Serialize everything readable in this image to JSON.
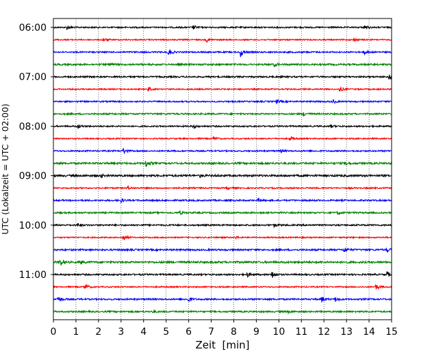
{
  "chart_data": {
    "type": "line",
    "xlabel": "Zeit  [min]",
    "ylabel": "UTC (Lokalzeit = UTC + 02:00)",
    "xlim": [
      0,
      15
    ],
    "x_ticks": [
      0,
      1,
      2,
      3,
      4,
      5,
      6,
      7,
      8,
      9,
      10,
      11,
      12,
      13,
      14,
      15
    ],
    "y_tick_labels": [
      "06:00",
      "07:00",
      "08:00",
      "09:00",
      "10:00",
      "11:00"
    ],
    "grid": "vertical dotted at each minute",
    "trace_minutes": 15,
    "trace_colors": [
      "#000000",
      "#ff0000",
      "#0000ff",
      "#008000"
    ],
    "traces": [
      {
        "start": "06:00",
        "color": "#000000",
        "amplitude": 1.0,
        "events": [
          {
            "t": 0.6,
            "a": 3
          },
          {
            "t": 6.2,
            "a": 3
          },
          {
            "t": 13.8,
            "a": 3.5
          }
        ]
      },
      {
        "start": "06:15",
        "color": "#ff0000",
        "amplitude": 0.9,
        "events": [
          {
            "t": 2.2,
            "a": 3
          },
          {
            "t": 6.8,
            "a": 3
          },
          {
            "t": 13.3,
            "a": 2.5
          }
        ]
      },
      {
        "start": "06:30",
        "color": "#0000ff",
        "amplitude": 1.0,
        "events": [
          {
            "t": 5.1,
            "a": 6
          },
          {
            "t": 8.3,
            "a": 7
          },
          {
            "t": 13.8,
            "a": 2.5
          }
        ]
      },
      {
        "start": "06:45",
        "color": "#008000",
        "amplitude": 1.2,
        "events": [
          {
            "t": 2.5,
            "a": 2
          },
          {
            "t": 9.8,
            "a": 2.5
          }
        ]
      },
      {
        "start": "07:00",
        "color": "#000000",
        "amplitude": 1.1,
        "events": [
          {
            "t": 14.9,
            "a": 5
          }
        ]
      },
      {
        "start": "07:15",
        "color": "#ff0000",
        "amplitude": 0.9,
        "events": [
          {
            "t": 4.2,
            "a": 3
          },
          {
            "t": 12.7,
            "a": 4
          }
        ]
      },
      {
        "start": "07:30",
        "color": "#0000ff",
        "amplitude": 1.0,
        "events": [
          {
            "t": 9.9,
            "a": 2.5
          },
          {
            "t": 12.4,
            "a": 3
          }
        ]
      },
      {
        "start": "07:45",
        "color": "#008000",
        "amplitude": 1.1,
        "events": [
          {
            "t": 11.1,
            "a": 3
          }
        ]
      },
      {
        "start": "08:00",
        "color": "#000000",
        "amplitude": 1.0,
        "events": [
          {
            "t": 1.1,
            "a": 3
          },
          {
            "t": 6.2,
            "a": 3
          },
          {
            "t": 12.3,
            "a": 2
          }
        ]
      },
      {
        "start": "08:15",
        "color": "#ff0000",
        "amplitude": 0.9,
        "events": [
          {
            "t": 7.1,
            "a": 2.5
          },
          {
            "t": 10.5,
            "a": 3.5
          }
        ]
      },
      {
        "start": "08:30",
        "color": "#0000ff",
        "amplitude": 1.0,
        "events": [
          {
            "t": 3.1,
            "a": 4.5
          },
          {
            "t": 10.1,
            "a": 2
          }
        ]
      },
      {
        "start": "08:45",
        "color": "#008000",
        "amplitude": 1.3,
        "events": [
          {
            "t": 4.1,
            "a": 6
          },
          {
            "t": 13.0,
            "a": 2.5
          }
        ]
      },
      {
        "start": "09:00",
        "color": "#000000",
        "amplitude": 1.4,
        "events": [
          {
            "t": 2.1,
            "a": 2
          },
          {
            "t": 6.5,
            "a": 2
          }
        ]
      },
      {
        "start": "09:15",
        "color": "#ff0000",
        "amplitude": 1.0,
        "events": [
          {
            "t": 3.3,
            "a": 2.5
          },
          {
            "t": 7.7,
            "a": 2
          }
        ]
      },
      {
        "start": "09:30",
        "color": "#0000ff",
        "amplitude": 1.1,
        "events": [
          {
            "t": 3.0,
            "a": 3
          },
          {
            "t": 9.1,
            "a": 2
          }
        ]
      },
      {
        "start": "09:45",
        "color": "#008000",
        "amplitude": 1.1,
        "events": [
          {
            "t": 5.6,
            "a": 2.5
          },
          {
            "t": 12.6,
            "a": 2
          }
        ]
      },
      {
        "start": "10:00",
        "color": "#000000",
        "amplitude": 1.1,
        "events": [
          {
            "t": 1.1,
            "a": 2.5
          },
          {
            "t": 9.8,
            "a": 2.5
          }
        ]
      },
      {
        "start": "10:15",
        "color": "#ff0000",
        "amplitude": 0.9,
        "events": [
          {
            "t": 3.1,
            "a": 5
          },
          {
            "t": 8.1,
            "a": 2
          }
        ]
      },
      {
        "start": "10:30",
        "color": "#0000ff",
        "amplitude": 1.2,
        "events": [
          {
            "t": 12.9,
            "a": 3.5
          },
          {
            "t": 14.8,
            "a": 3
          }
        ]
      },
      {
        "start": "10:45",
        "color": "#008000",
        "amplitude": 1.4,
        "events": [
          {
            "t": 0.3,
            "a": 5
          },
          {
            "t": 1.2,
            "a": 2.5
          }
        ]
      },
      {
        "start": "11:00",
        "color": "#000000",
        "amplitude": 1.1,
        "events": [
          {
            "t": 8.6,
            "a": 3.5
          },
          {
            "t": 9.7,
            "a": 7
          },
          {
            "t": 14.8,
            "a": 4
          }
        ]
      },
      {
        "start": "11:15",
        "color": "#ff0000",
        "amplitude": 0.9,
        "events": [
          {
            "t": 1.4,
            "a": 5
          },
          {
            "t": 14.3,
            "a": 4
          }
        ]
      },
      {
        "start": "11:30",
        "color": "#0000ff",
        "amplitude": 1.1,
        "events": [
          {
            "t": 0.2,
            "a": 4.5
          },
          {
            "t": 6.0,
            "a": 4
          },
          {
            "t": 11.9,
            "a": 4.5
          },
          {
            "t": 12.5,
            "a": 3
          }
        ]
      },
      {
        "start": "11:45",
        "color": "#008000",
        "amplitude": 1.1,
        "events": [
          {
            "t": 4.4,
            "a": 2
          },
          {
            "t": 10.4,
            "a": 2
          }
        ]
      }
    ]
  }
}
